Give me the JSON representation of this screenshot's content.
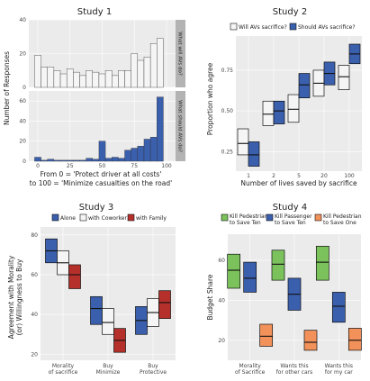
{
  "colors": {
    "blue": "#3a5fad",
    "white": "#f5f5f5",
    "red": "#b5302a",
    "green": "#7bc25c",
    "orange": "#f2915a",
    "panel_bg": "#ebebeb",
    "grid": "#ffffff",
    "strip_bg": "#b3b3b3"
  },
  "chart_data": [
    {
      "id": "study1",
      "type": "bar",
      "title": "Study 1",
      "xlabel": "From 0 = 'Protect driver at all costs'\nto 100 = 'Minimize casualties on the road'",
      "xlabel_lines": [
        "From 0 = 'Protect driver at all costs'",
        "to 100 = 'Minimize casualties on the road'"
      ],
      "ylabel": "Number of Responses",
      "x_ticks": [
        "0",
        "25",
        "50",
        "75",
        "100"
      ],
      "x_tick_values": [
        0,
        25,
        50,
        75,
        100
      ],
      "xlim": [
        -7,
        107
      ],
      "bin_width": 5,
      "panels": [
        {
          "strip": "What will AVs do?",
          "ylim": [
            0,
            40
          ],
          "y_ticks": [
            "0",
            "20",
            "40"
          ],
          "y_tick_values": [
            0,
            20,
            40
          ],
          "bins": [
            0,
            5,
            10,
            15,
            20,
            25,
            30,
            35,
            40,
            45,
            50,
            55,
            60,
            65,
            70,
            75,
            80,
            85,
            90,
            95,
            100
          ],
          "values": [
            19,
            12,
            12,
            10,
            8,
            11,
            9,
            7,
            10,
            9,
            8,
            10,
            7,
            10,
            10,
            20,
            16,
            18,
            26,
            29,
            0
          ],
          "color": "white"
        },
        {
          "strip": "What should AVs do?",
          "ylim": [
            0,
            70
          ],
          "y_ticks": [
            "0",
            "20",
            "40",
            "60"
          ],
          "y_tick_values": [
            0,
            20,
            40,
            60
          ],
          "bins": [
            0,
            5,
            10,
            15,
            20,
            25,
            30,
            35,
            40,
            45,
            50,
            55,
            60,
            65,
            70,
            75,
            80,
            85,
            90,
            95,
            100
          ],
          "values": [
            4,
            1,
            2,
            1,
            1,
            1,
            1,
            1,
            3,
            2,
            20,
            3,
            4,
            3,
            11,
            13,
            15,
            22,
            24,
            64,
            0
          ],
          "color": "blue"
        }
      ]
    },
    {
      "id": "study2",
      "type": "crossbar",
      "title": "Study 2",
      "xlabel": "Number of lives saved by sacrifice",
      "ylabel": "Proportion who agree",
      "categories": [
        "1",
        "2",
        "5",
        "20",
        "100"
      ],
      "ylim": [
        0.13,
        0.96
      ],
      "y_ticks": [
        "0.25",
        "0.50",
        "0.75"
      ],
      "y_tick_values": [
        0.25,
        0.5,
        0.75
      ],
      "legend": [
        "Will AVs sacrifice?",
        "Should AVs sacrifice?"
      ],
      "series": [
        {
          "name": "Will AVs sacrifice?",
          "color": "white",
          "low": [
            0.23,
            0.41,
            0.43,
            0.59,
            0.63
          ],
          "mid": [
            0.3,
            0.48,
            0.51,
            0.67,
            0.71
          ],
          "high": [
            0.39,
            0.56,
            0.6,
            0.75,
            0.78
          ]
        },
        {
          "name": "Should AVs sacrifice?",
          "color": "blue",
          "low": [
            0.16,
            0.42,
            0.58,
            0.66,
            0.79
          ],
          "mid": [
            0.23,
            0.5,
            0.66,
            0.73,
            0.85
          ],
          "high": [
            0.31,
            0.56,
            0.73,
            0.8,
            0.91
          ]
        }
      ]
    },
    {
      "id": "study3",
      "type": "crossbar",
      "title": "Study 3",
      "xlabel": "",
      "ylabel_lines": [
        "Agreement with Morality",
        "(or) Willingness to Buy"
      ],
      "ylabel": "Agreement with Morality (or) Willingness to Buy",
      "categories": [
        "Morality\nof sacrifice",
        "Buy\nMinimize",
        "Buy\nProtective"
      ],
      "category_lines": [
        [
          "Morality",
          "of sacrifice"
        ],
        [
          "Buy",
          "Minimize"
        ],
        [
          "Buy",
          "Protective"
        ]
      ],
      "ylim": [
        17,
        84
      ],
      "y_ticks": [
        "20",
        "40",
        "60",
        "80"
      ],
      "y_tick_values": [
        20,
        40,
        60,
        80
      ],
      "legend": [
        "Alone",
        "with Coworker",
        "with Family"
      ],
      "series": [
        {
          "name": "Alone",
          "color": "blue",
          "low": [
            66,
            35,
            30
          ],
          "mid": [
            72,
            43,
            37
          ],
          "high": [
            78,
            49,
            44
          ]
        },
        {
          "name": "with Coworker",
          "color": "white",
          "low": [
            60,
            30,
            34
          ],
          "mid": [
            66,
            36,
            41
          ],
          "high": [
            72,
            43,
            48
          ]
        },
        {
          "name": "with Family",
          "color": "red",
          "low": [
            53,
            21,
            38
          ],
          "mid": [
            60,
            27,
            46
          ],
          "high": [
            65,
            33,
            52
          ]
        }
      ]
    },
    {
      "id": "study4",
      "type": "crossbar",
      "title": "Study 4",
      "xlabel": "",
      "ylabel": "Budget Share",
      "categories": [
        "Morality\nof Sacrifice",
        "Wants this\nfor other cars",
        "Wants this\nfor my car"
      ],
      "category_lines": [
        [
          "Morality",
          "of Sacrifice"
        ],
        [
          "Wants this",
          "for other cars"
        ],
        [
          "Wants this",
          "for my car"
        ]
      ],
      "ylim": [
        10,
        73
      ],
      "y_ticks": [
        "20",
        "40",
        "60"
      ],
      "y_tick_values": [
        20,
        40,
        60
      ],
      "legend": [
        "Kill Pedestrian\nto Save Ten",
        "Kill Passenger\nto Save Ten",
        "Kill Pedestrian\nto Save One"
      ],
      "legend_lines": [
        [
          "Kill Pedestrian",
          "to Save Ten"
        ],
        [
          "Kill Passenger",
          "to Save Ten"
        ],
        [
          "Kill Pedestrian",
          "to Save One"
        ]
      ],
      "series": [
        {
          "name": "Kill Pedestrian to Save Ten",
          "color": "green",
          "low": [
            46,
            50,
            50
          ],
          "mid": [
            55,
            58,
            59
          ],
          "high": [
            63,
            65,
            67
          ]
        },
        {
          "name": "Kill Passenger to Save Ten",
          "color": "blue",
          "low": [
            44,
            35,
            29
          ],
          "mid": [
            51,
            43,
            37
          ],
          "high": [
            59,
            51,
            44
          ]
        },
        {
          "name": "Kill Pedestrian to Save One",
          "color": "orange",
          "low": [
            17,
            15,
            15
          ],
          "mid": [
            22,
            19,
            20
          ],
          "high": [
            28,
            25,
            26
          ]
        }
      ]
    }
  ]
}
